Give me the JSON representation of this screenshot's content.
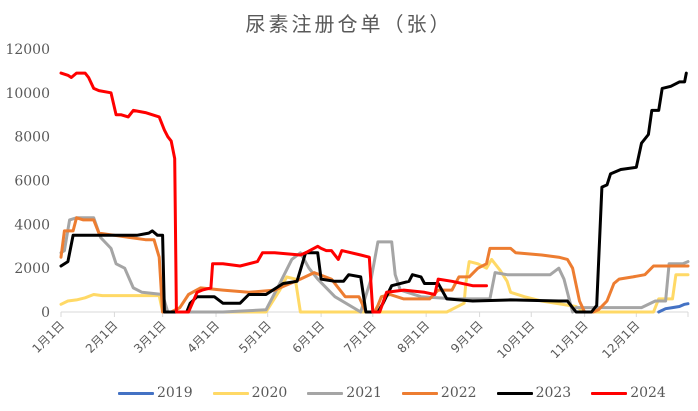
{
  "chart_data": {
    "type": "line",
    "title": "尿素注册仓单（张）",
    "xlabel": "",
    "ylabel": "",
    "ylim": [
      0,
      12000
    ],
    "yticks": [
      0,
      2000,
      4000,
      6000,
      8000,
      10000,
      12000
    ],
    "xticks": [
      "1月1日",
      "2月1日",
      "3月1日",
      "4月1日",
      "5月1日",
      "6月1日",
      "7月1日",
      "8月1日",
      "9月1日",
      "10月1日",
      "11月1日",
      "12月1日"
    ],
    "grid": false,
    "legend_position": "bottom",
    "x_unit": "day_of_year",
    "series": [
      {
        "name": "2019",
        "color": "#4472C4",
        "points": [
          [
            348,
            0
          ],
          [
            352,
            150
          ],
          [
            356,
            200
          ],
          [
            360,
            250
          ],
          [
            363,
            350
          ],
          [
            365,
            380
          ]
        ]
      },
      {
        "name": "2020",
        "color": "#FFD966",
        "points": [
          [
            1,
            350
          ],
          [
            5,
            500
          ],
          [
            10,
            550
          ],
          [
            15,
            650
          ],
          [
            20,
            800
          ],
          [
            25,
            750
          ],
          [
            35,
            750
          ],
          [
            45,
            750
          ],
          [
            55,
            750
          ],
          [
            58,
            750
          ],
          [
            60,
            0
          ],
          [
            120,
            0
          ],
          [
            128,
            1000
          ],
          [
            132,
            1600
          ],
          [
            137,
            1500
          ],
          [
            140,
            0
          ],
          [
            225,
            0
          ],
          [
            235,
            400
          ],
          [
            236,
            1300
          ],
          [
            238,
            2300
          ],
          [
            243,
            2200
          ],
          [
            248,
            2000
          ],
          [
            251,
            2400
          ],
          [
            256,
            1900
          ],
          [
            260,
            1400
          ],
          [
            262,
            900
          ],
          [
            270,
            700
          ],
          [
            280,
            500
          ],
          [
            300,
            250
          ],
          [
            305,
            0
          ],
          [
            345,
            0
          ],
          [
            348,
            600
          ],
          [
            356,
            600
          ],
          [
            358,
            1700
          ],
          [
            365,
            1700
          ]
        ]
      },
      {
        "name": "2021",
        "color": "#A5A5A5",
        "points": [
          [
            1,
            2700
          ],
          [
            3,
            2800
          ],
          [
            6,
            4200
          ],
          [
            10,
            4300
          ],
          [
            20,
            4300
          ],
          [
            24,
            3400
          ],
          [
            30,
            2900
          ],
          [
            33,
            2200
          ],
          [
            38,
            2000
          ],
          [
            43,
            1100
          ],
          [
            48,
            900
          ],
          [
            60,
            800
          ],
          [
            63,
            0
          ],
          [
            95,
            0
          ],
          [
            120,
            100
          ],
          [
            128,
            1300
          ],
          [
            135,
            2400
          ],
          [
            140,
            2700
          ],
          [
            145,
            2000
          ],
          [
            150,
            1500
          ],
          [
            160,
            700
          ],
          [
            175,
            0
          ],
          [
            181,
            1500
          ],
          [
            185,
            3200
          ],
          [
            193,
            3200
          ],
          [
            195,
            1700
          ],
          [
            198,
            1000
          ],
          [
            210,
            700
          ],
          [
            230,
            600
          ],
          [
            250,
            600
          ],
          [
            253,
            1800
          ],
          [
            260,
            1700
          ],
          [
            270,
            1700
          ],
          [
            285,
            1700
          ],
          [
            290,
            2000
          ],
          [
            293,
            1500
          ],
          [
            296,
            600
          ],
          [
            298,
            0
          ],
          [
            300,
            200
          ],
          [
            338,
            200
          ],
          [
            346,
            500
          ],
          [
            352,
            500
          ],
          [
            354,
            2200
          ],
          [
            362,
            2200
          ],
          [
            365,
            2300
          ]
        ]
      },
      {
        "name": "2022",
        "color": "#ED7D31",
        "points": [
          [
            1,
            2500
          ],
          [
            3,
            3700
          ],
          [
            8,
            3700
          ],
          [
            10,
            4300
          ],
          [
            14,
            4200
          ],
          [
            20,
            4200
          ],
          [
            23,
            3600
          ],
          [
            32,
            3500
          ],
          [
            50,
            3300
          ],
          [
            55,
            3300
          ],
          [
            58,
            2500
          ],
          [
            60,
            0
          ],
          [
            65,
            0
          ],
          [
            70,
            200
          ],
          [
            75,
            800
          ],
          [
            82,
            1100
          ],
          [
            95,
            1000
          ],
          [
            110,
            900
          ],
          [
            125,
            1000
          ],
          [
            140,
            1500
          ],
          [
            148,
            1800
          ],
          [
            158,
            1500
          ],
          [
            166,
            700
          ],
          [
            174,
            700
          ],
          [
            178,
            0
          ],
          [
            183,
            0
          ],
          [
            185,
            300
          ],
          [
            187,
            700
          ],
          [
            192,
            800
          ],
          [
            200,
            600
          ],
          [
            215,
            600
          ],
          [
            220,
            1000
          ],
          [
            228,
            1000
          ],
          [
            232,
            1600
          ],
          [
            238,
            1600
          ],
          [
            243,
            2000
          ],
          [
            248,
            2200
          ],
          [
            250,
            2900
          ],
          [
            262,
            2900
          ],
          [
            265,
            2700
          ],
          [
            280,
            2600
          ],
          [
            290,
            2500
          ],
          [
            295,
            2400
          ],
          [
            298,
            2000
          ],
          [
            302,
            500
          ],
          [
            305,
            0
          ],
          [
            310,
            0
          ],
          [
            313,
            100
          ],
          [
            318,
            500
          ],
          [
            322,
            1300
          ],
          [
            325,
            1500
          ],
          [
            333,
            1600
          ],
          [
            340,
            1700
          ],
          [
            345,
            2100
          ],
          [
            365,
            2100
          ]
        ]
      },
      {
        "name": "2023",
        "color": "#000000",
        "points": [
          [
            1,
            2100
          ],
          [
            5,
            2300
          ],
          [
            8,
            3500
          ],
          [
            20,
            3500
          ],
          [
            35,
            3500
          ],
          [
            45,
            3500
          ],
          [
            52,
            3600
          ],
          [
            54,
            3700
          ],
          [
            57,
            3500
          ],
          [
            60,
            3500
          ],
          [
            61,
            0
          ],
          [
            74,
            0
          ],
          [
            76,
            400
          ],
          [
            80,
            700
          ],
          [
            90,
            700
          ],
          [
            95,
            400
          ],
          [
            105,
            400
          ],
          [
            110,
            800
          ],
          [
            120,
            800
          ],
          [
            130,
            1300
          ],
          [
            138,
            1400
          ],
          [
            143,
            2700
          ],
          [
            150,
            2700
          ],
          [
            152,
            1500
          ],
          [
            160,
            1400
          ],
          [
            165,
            1400
          ],
          [
            168,
            1700
          ],
          [
            175,
            1600
          ],
          [
            178,
            0
          ],
          [
            185,
            0
          ],
          [
            188,
            400
          ],
          [
            193,
            1200
          ],
          [
            203,
            1400
          ],
          [
            205,
            1700
          ],
          [
            210,
            1600
          ],
          [
            212,
            1300
          ],
          [
            220,
            1300
          ],
          [
            225,
            600
          ],
          [
            240,
            500
          ],
          [
            262,
            550
          ],
          [
            290,
            500
          ],
          [
            295,
            500
          ],
          [
            300,
            0
          ],
          [
            309,
            0
          ],
          [
            312,
            300
          ],
          [
            315,
            5700
          ],
          [
            318,
            5800
          ],
          [
            320,
            6300
          ],
          [
            326,
            6500
          ],
          [
            335,
            6600
          ],
          [
            338,
            7700
          ],
          [
            342,
            8100
          ],
          [
            344,
            9200
          ],
          [
            348,
            9200
          ],
          [
            350,
            10200
          ],
          [
            355,
            10300
          ],
          [
            360,
            10500
          ],
          [
            363,
            10500
          ],
          [
            364,
            10900
          ]
        ]
      },
      {
        "name": "2024",
        "color": "#FF0000",
        "points": [
          [
            1,
            10900
          ],
          [
            5,
            10800
          ],
          [
            7,
            10700
          ],
          [
            10,
            10900
          ],
          [
            15,
            10900
          ],
          [
            17,
            10700
          ],
          [
            20,
            10200
          ],
          [
            23,
            10100
          ],
          [
            30,
            10000
          ],
          [
            33,
            9000
          ],
          [
            36,
            9000
          ],
          [
            40,
            8900
          ],
          [
            43,
            9200
          ],
          [
            50,
            9100
          ],
          [
            58,
            8900
          ],
          [
            61,
            8300
          ],
          [
            63,
            8000
          ],
          [
            65,
            7800
          ],
          [
            67,
            7000
          ],
          [
            68,
            0
          ],
          [
            75,
            0
          ],
          [
            80,
            900
          ],
          [
            83,
            1000
          ],
          [
            88,
            1100
          ],
          [
            89,
            2200
          ],
          [
            95,
            2200
          ],
          [
            105,
            2100
          ],
          [
            115,
            2300
          ],
          [
            118,
            2700
          ],
          [
            125,
            2700
          ],
          [
            140,
            2600
          ],
          [
            143,
            2700
          ],
          [
            150,
            3000
          ],
          [
            152,
            2900
          ],
          [
            155,
            2800
          ],
          [
            158,
            2800
          ],
          [
            162,
            2400
          ],
          [
            164,
            2800
          ],
          [
            175,
            2600
          ],
          [
            180,
            2500
          ],
          [
            182,
            0
          ],
          [
            186,
            0
          ],
          [
            190,
            900
          ],
          [
            200,
            1000
          ],
          [
            212,
            900
          ],
          [
            218,
            800
          ],
          [
            220,
            1500
          ],
          [
            228,
            1400
          ],
          [
            240,
            1200
          ],
          [
            248,
            1200
          ]
        ]
      }
    ]
  },
  "legend": {
    "items": [
      {
        "label": "2019",
        "color": "#4472C4"
      },
      {
        "label": "2020",
        "color": "#FFD966"
      },
      {
        "label": "2021",
        "color": "#A5A5A5"
      },
      {
        "label": "2022",
        "color": "#ED7D31"
      },
      {
        "label": "2023",
        "color": "#000000"
      },
      {
        "label": "2024",
        "color": "#FF0000"
      }
    ]
  }
}
